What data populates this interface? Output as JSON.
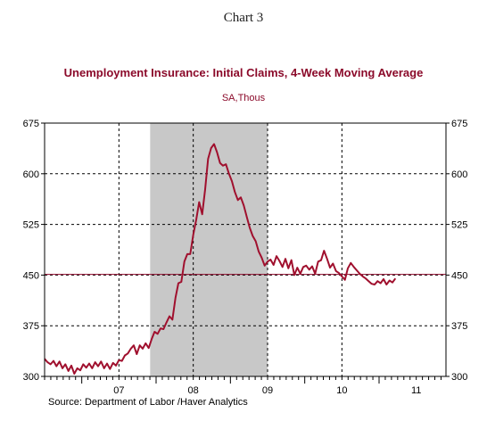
{
  "header": {
    "chart_label": "Chart 3",
    "title": "Unemployment Insurance: Initial Claims, 4-Week Moving Average",
    "subtitle": "SA,Thous"
  },
  "footer": {
    "source": "Source:  Department of Labor /Haver Analytics"
  },
  "colors": {
    "series": "#a0102e",
    "title": "#8b0a2a",
    "recession_shade": "#c8c8c8",
    "reference_line": "#8b0a2a"
  },
  "chart_data": {
    "type": "line",
    "title": "Unemployment Insurance: Initial Claims, 4-Week Moving Average",
    "subtitle": "SA,Thous",
    "xlabel": "",
    "ylabel": "",
    "xlim": [
      2006.5,
      2011.9
    ],
    "ylim": [
      300,
      675
    ],
    "y_ticks": [
      300,
      375,
      450,
      525,
      600,
      675
    ],
    "y_tick_labels": [
      "300",
      "375",
      "450",
      "525",
      "600",
      "675"
    ],
    "x_tick_labels": [
      {
        "label": "07",
        "x": 2007.0
      },
      {
        "label": "08",
        "x": 2008.0
      },
      {
        "label": "09",
        "x": 2009.0
      },
      {
        "label": "10",
        "x": 2010.0
      },
      {
        "label": "11",
        "x": 2011.0
      }
    ],
    "dashed_gridlines_x": [
      2007.5,
      2008.5,
      2009.5,
      2010.5
    ],
    "recession_shade": [
      2007.92,
      2009.5
    ],
    "reference_line_y": 451,
    "grid": false,
    "series": [
      {
        "x": [
          2006.5,
          2006.54,
          2006.58,
          2006.62,
          2006.66,
          2006.7,
          2006.74,
          2006.78,
          2006.82,
          2006.86,
          2006.9,
          2006.94,
          2006.98,
          2007.02,
          2007.06,
          2007.1,
          2007.14,
          2007.18,
          2007.22,
          2007.26,
          2007.3,
          2007.34,
          2007.38,
          2007.42,
          2007.46,
          2007.5,
          2007.54,
          2007.58,
          2007.62,
          2007.66,
          2007.7,
          2007.74,
          2007.78,
          2007.82,
          2007.86,
          2007.9,
          2007.94,
          2007.98,
          2008.02,
          2008.06,
          2008.1,
          2008.14,
          2008.18,
          2008.22,
          2008.26,
          2008.3,
          2008.34,
          2008.38,
          2008.42,
          2008.46,
          2008.5,
          2008.54,
          2008.58,
          2008.62,
          2008.66,
          2008.7,
          2008.74,
          2008.78,
          2008.82,
          2008.86,
          2008.9,
          2008.94,
          2008.98,
          2009.02,
          2009.06,
          2009.1,
          2009.14,
          2009.18,
          2009.22,
          2009.26,
          2009.3,
          2009.34,
          2009.38,
          2009.42,
          2009.46,
          2009.5,
          2009.54,
          2009.58,
          2009.62,
          2009.66,
          2009.7,
          2009.74,
          2009.78,
          2009.82,
          2009.86,
          2009.9,
          2009.94,
          2009.98,
          2010.02,
          2010.06,
          2010.1,
          2010.14,
          2010.18,
          2010.22,
          2010.26,
          2010.3,
          2010.34,
          2010.38,
          2010.42,
          2010.46,
          2010.5,
          2010.54,
          2010.58,
          2010.62,
          2010.66,
          2010.7,
          2010.74,
          2010.78,
          2010.82,
          2010.86,
          2010.9,
          2010.94,
          2010.98,
          2011.02,
          2011.06,
          2011.1,
          2011.14,
          2011.18,
          2011.22
        ],
        "values": [
          326,
          321,
          318,
          323,
          315,
          322,
          312,
          318,
          308,
          316,
          304,
          312,
          309,
          318,
          313,
          319,
          312,
          321,
          315,
          322,
          312,
          319,
          311,
          320,
          316,
          324,
          323,
          331,
          334,
          341,
          346,
          333,
          346,
          341,
          349,
          342,
          355,
          366,
          363,
          371,
          370,
          380,
          389,
          384,
          416,
          438,
          440,
          470,
          481,
          481,
          510,
          532,
          558,
          540,
          577,
          622,
          638,
          644,
          632,
          616,
          612,
          614,
          600,
          589,
          573,
          561,
          565,
          553,
          536,
          520,
          508,
          500,
          485,
          476,
          464,
          470,
          473,
          465,
          478,
          471,
          462,
          474,
          460,
          472,
          450,
          461,
          452,
          462,
          464,
          458,
          463,
          452,
          470,
          472,
          486,
          474,
          461,
          467,
          456,
          453,
          448,
          443,
          460,
          468,
          462,
          457,
          452,
          448,
          445,
          441,
          437,
          436,
          441,
          438,
          444,
          436,
          442,
          439,
          445
        ]
      }
    ]
  }
}
